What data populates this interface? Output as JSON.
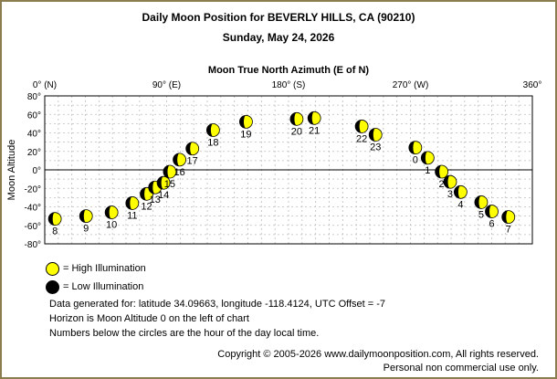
{
  "header": {
    "title": "Daily Moon Position for BEVERLY HILLS, CA (90210)",
    "date": "Sunday, May 24, 2026"
  },
  "chart_data": {
    "type": "scatter",
    "title": "Moon True North Azimuth (E of N)",
    "xlabel": "Moon True North Azimuth (E of N)",
    "ylabel": "Moon Altitude",
    "xlim": [
      0,
      360
    ],
    "ylim": [
      -80,
      80
    ],
    "x_ticks": [
      {
        "value": 0,
        "label": "0° (N)"
      },
      {
        "value": 90,
        "label": "90° (E)"
      },
      {
        "value": 180,
        "label": "180° (S)"
      },
      {
        "value": 270,
        "label": "270° (W)"
      },
      {
        "value": 360,
        "label": "360°"
      }
    ],
    "y_ticks": [
      80,
      60,
      40,
      20,
      0,
      -20,
      -40,
      -60,
      -80
    ],
    "y_tick_labels": [
      "80°",
      "60°",
      "40°",
      "20°",
      "0°",
      "-20°",
      "-40°",
      "-60°",
      "-80°"
    ],
    "grid": true,
    "horizon_altitude": 0,
    "moon_fill": "#ffff00",
    "moon_dark": "#000000",
    "points": [
      {
        "hour": "8",
        "azimuth": 7.5,
        "altitude": -53
      },
      {
        "hour": "9",
        "azimuth": 30.5,
        "altitude": -50
      },
      {
        "hour": "10",
        "azimuth": 49.3,
        "altitude": -46
      },
      {
        "hour": "11",
        "azimuth": 64.6,
        "altitude": -36
      },
      {
        "hour": "12",
        "azimuth": 75.2,
        "altitude": -26
      },
      {
        "hour": "13",
        "azimuth": 81.4,
        "altitude": -19
      },
      {
        "hour": "14",
        "azimuth": 87.7,
        "altitude": -14
      },
      {
        "hour": "15",
        "azimuth": 92.3,
        "altitude": -2
      },
      {
        "hour": "16",
        "azimuth": 99.5,
        "altitude": 11
      },
      {
        "hour": "17",
        "azimuth": 109.0,
        "altitude": 23
      },
      {
        "hour": "18",
        "azimuth": 124.3,
        "altitude": 43
      },
      {
        "hour": "19",
        "azimuth": 148.6,
        "altitude": 52
      },
      {
        "hour": "20",
        "azimuth": 186.0,
        "altitude": 55
      },
      {
        "hour": "21",
        "azimuth": 199.0,
        "altitude": 56
      },
      {
        "hour": "22",
        "azimuth": 234.0,
        "altitude": 47
      },
      {
        "hour": "23",
        "azimuth": 244.2,
        "altitude": 38
      },
      {
        "hour": "0",
        "azimuth": 273.6,
        "altitude": 24
      },
      {
        "hour": "1",
        "azimuth": 282.7,
        "altitude": 13
      },
      {
        "hour": "2",
        "azimuth": 293.0,
        "altitude": -2
      },
      {
        "hour": "3",
        "azimuth": 299.3,
        "altitude": -13
      },
      {
        "hour": "4",
        "azimuth": 307.0,
        "altitude": -24
      },
      {
        "hour": "5",
        "azimuth": 322.2,
        "altitude": -35
      },
      {
        "hour": "6",
        "azimuth": 330.0,
        "altitude": -45
      },
      {
        "hour": "7",
        "azimuth": 342.3,
        "altitude": -51
      }
    ]
  },
  "legend": {
    "high": "= High Illumination",
    "low": "= Low Illumination"
  },
  "info": {
    "line1": "Data generated for: latitude 34.09663, longitude -118.4124, UTC Offset = -7",
    "line2": "Horizon is Moon Altitude 0 on the left of chart",
    "line3": "Numbers below the circles are the hour of the day local time."
  },
  "footer": {
    "copyright": "Copyright © 2005-2026 www.dailymoonposition.com, All rights reserved.",
    "note": "Personal non commercial use only."
  }
}
